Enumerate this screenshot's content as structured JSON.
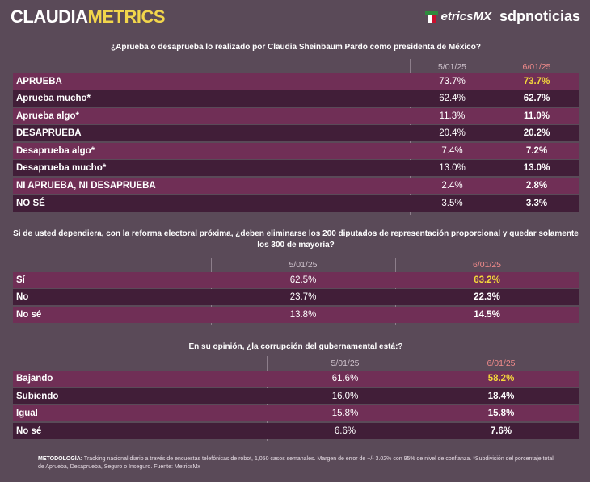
{
  "header": {
    "brand_part1": "CLAUDIA",
    "brand_part2": "METRICS",
    "logo_metrics": "etricsMX",
    "logo_sdp": "sdpnoticias"
  },
  "tables": [
    {
      "question": "¿Aprueba o desaprueba lo realizado por Claudia Sheinbaum Pardo como presidenta de México?",
      "date_prev": "5/01/25",
      "date_new": "6/01/25",
      "rows": [
        {
          "label": "APRUEBA",
          "prev": "73.7%",
          "new": "73.7%",
          "highlight": true
        },
        {
          "label": "Aprueba mucho*",
          "prev": "62.4%",
          "new": "62.7%",
          "highlight": false
        },
        {
          "label": "Aprueba algo*",
          "prev": "11.3%",
          "new": "11.0%",
          "highlight": false
        },
        {
          "label": "DESAPRUEBA",
          "prev": "20.4%",
          "new": "20.2%",
          "highlight": false
        },
        {
          "label": "Desaprueba algo*",
          "prev": "7.4%",
          "new": "7.2%",
          "highlight": false
        },
        {
          "label": "Desaprueba mucho*",
          "prev": "13.0%",
          "new": "13.0%",
          "highlight": false
        },
        {
          "label": "NI APRUEBA, NI DESAPRUEBA",
          "prev": "2.4%",
          "new": "2.8%",
          "highlight": false
        },
        {
          "label": "NO SÉ",
          "prev": "3.5%",
          "new": "3.3%",
          "highlight": false
        }
      ]
    },
    {
      "question": "Si de usted dependiera, con la reforma electoral próxima, ¿deben eliminarse los 200 diputados de representación proporcional y quedar solamente los 300 de mayoría?",
      "date_prev": "5/01/25",
      "date_new": "6/01/25",
      "rows": [
        {
          "label": "Sí",
          "prev": "62.5%",
          "new": "63.2%",
          "highlight": true
        },
        {
          "label": "No",
          "prev": "23.7%",
          "new": "22.3%",
          "highlight": false
        },
        {
          "label": "No sé",
          "prev": "13.8%",
          "new": "14.5%",
          "highlight": false
        }
      ]
    },
    {
      "question": "En su opinión, ¿la corrupción del gubernamental está:?",
      "date_prev": "5/01/25",
      "date_new": "6/01/25",
      "rows": [
        {
          "label": "Bajando",
          "prev": "61.6%",
          "new": "58.2%",
          "highlight": true
        },
        {
          "label": "Subiendo",
          "prev": "16.0%",
          "new": "18.4%",
          "highlight": false
        },
        {
          "label": "Igual",
          "prev": "15.8%",
          "new": "15.8%",
          "highlight": false
        },
        {
          "label": "No sé",
          "prev": "6.6%",
          "new": "7.6%",
          "highlight": false
        }
      ]
    }
  ],
  "methodology": {
    "label": "METODOLOGÍA:",
    "text": "Tracking nacional diario a través de encuestas telefónicas de robot, 1,050 casos semanales. Margen de error de +/- 3.02% con 95% de nivel de confianza. *Subdivisión del porcentaje total de Aprueba, Desaprueba, Seguro o Inseguro. Fuente: MetricsMx"
  }
}
